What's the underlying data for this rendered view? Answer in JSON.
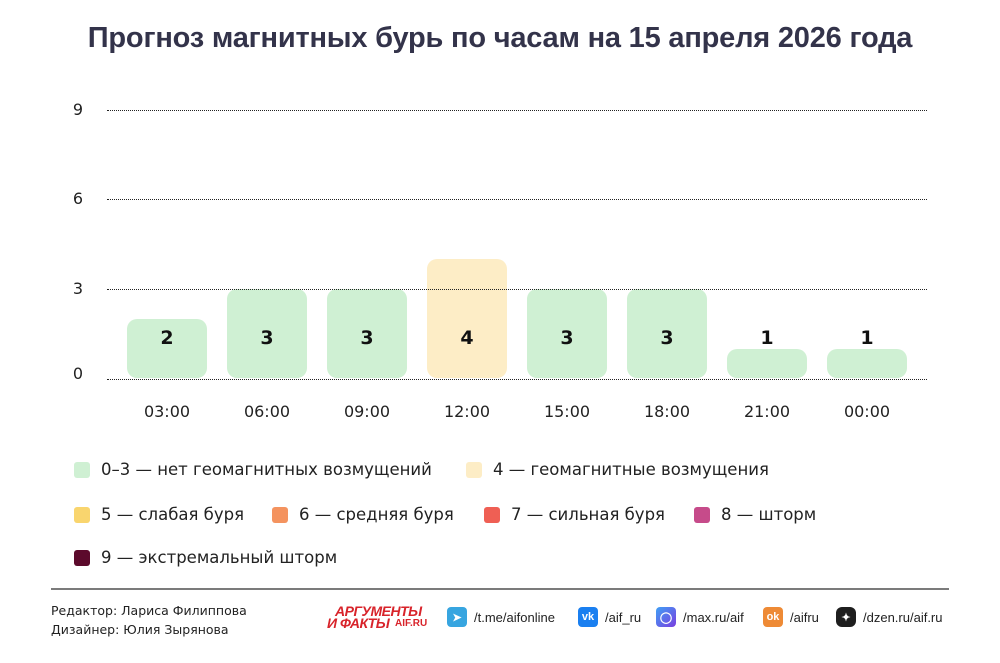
{
  "title": "Прогноз магнитных бурь по часам на 15 апреля 2026 года",
  "chart_data": {
    "type": "bar",
    "title": "Прогноз магнитных бурь по часам на 15 апреля 2026 года",
    "xlabel": "",
    "ylabel": "",
    "categories": [
      "03:00",
      "06:00",
      "09:00",
      "12:00",
      "15:00",
      "18:00",
      "21:00",
      "00:00"
    ],
    "values": [
      2,
      3,
      3,
      4,
      3,
      3,
      1,
      1
    ],
    "bar_colors": [
      "#cff0d3",
      "#cff0d3",
      "#cff0d3",
      "#fdedc6",
      "#cff0d3",
      "#cff0d3",
      "#cff0d3",
      "#cff0d3"
    ],
    "value_labels": [
      "2",
      "3",
      "3",
      "4",
      "3",
      "3",
      "1",
      "1"
    ],
    "ylim": [
      0,
      9
    ],
    "yticks": [
      "0",
      "3",
      "6",
      "9"
    ],
    "grid": true,
    "grid_style": "dotted",
    "legend_position": "bottom",
    "legend": [
      {
        "label": "0–3 — нет геомагнитных возмущений",
        "color": "#cff0d3"
      },
      {
        "label": "4 — геомагнитные возмущения",
        "color": "#fdedc6"
      },
      {
        "label": "5 — слабая буря",
        "color": "#f9d56e"
      },
      {
        "label": "6 — средняя буря",
        "color": "#f4935f"
      },
      {
        "label": "7 — сильная буря",
        "color": "#ef5f54"
      },
      {
        "label": "8 — шторм",
        "color": "#c64b8a"
      },
      {
        "label": "9 — экстремальный шторм",
        "color": "#5c0a2c"
      }
    ]
  },
  "footer": {
    "editor": "Редактор: Лариса Филиппова",
    "designer": "Дизайнер: Юлия Зырянова",
    "logo": {
      "line1": "АРГУМЕНТЫ",
      "line2": "И ФАКТЫ",
      "domain": "AIF.RU",
      "color": "#d8232a"
    },
    "social": [
      {
        "icon": "telegram-icon",
        "glyph": "➤",
        "label": "/t.me/aifonline",
        "color": "#37a5e0"
      },
      {
        "icon": "vk-icon",
        "glyph": "vk",
        "label": "/aif_ru",
        "color": "#1a7ff0"
      },
      {
        "icon": "max-icon",
        "glyph": "◯",
        "label": "/max.ru/aif",
        "color": "#6a4de0"
      },
      {
        "icon": "odnoklassniki-icon",
        "glyph": "ok",
        "label": "/aifru",
        "color": "#ee8a35"
      },
      {
        "icon": "dzen-icon",
        "glyph": "✦",
        "label": "/dzen.ru/aif.ru",
        "color": "#1e1e1e"
      }
    ]
  }
}
